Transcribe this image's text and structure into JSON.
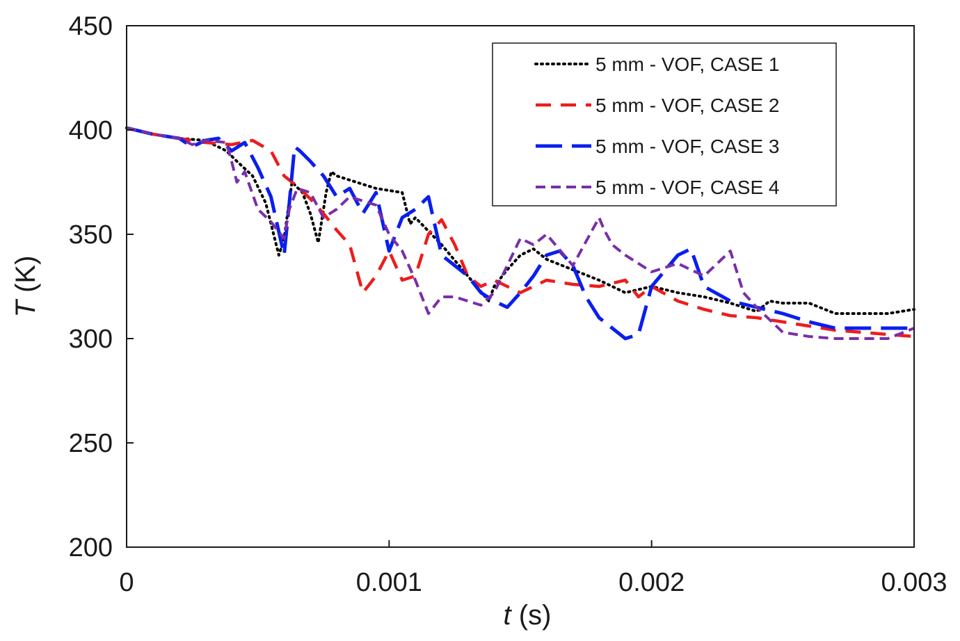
{
  "chart_data": {
    "type": "line",
    "title": "",
    "xlabel": {
      "symbol": "t",
      "unit": " (s)"
    },
    "ylabel": {
      "symbol": "T",
      "unit": " (K)"
    },
    "xlim": [
      0,
      0.003
    ],
    "ylim": [
      200,
      450
    ],
    "xticks": [
      0,
      0.001,
      0.002,
      0.003
    ],
    "xtick_labels": [
      "0",
      "0.001",
      "0.002",
      "0.003"
    ],
    "yticks": [
      200,
      250,
      300,
      350,
      400,
      450
    ],
    "ytick_labels": [
      "200",
      "250",
      "300",
      "350",
      "400",
      "450"
    ],
    "grid": false,
    "legend_position": "top-right",
    "series": [
      {
        "name": "5 mm - VOF, CASE 1",
        "color": "#000000",
        "style": "dotted",
        "x": [
          0,
          0.0001,
          0.0002,
          0.0003,
          0.00038,
          0.00042,
          0.00048,
          0.00053,
          0.00058,
          0.0006,
          0.00063,
          0.00067,
          0.0007,
          0.00073,
          0.00076,
          0.00078,
          0.0008,
          0.00085,
          0.0009,
          0.00095,
          0.001,
          0.00105,
          0.00108,
          0.0011,
          0.0012,
          0.0013,
          0.00138,
          0.0014,
          0.00145,
          0.0015,
          0.00155,
          0.0016,
          0.0017,
          0.0018,
          0.0019,
          0.002,
          0.0021,
          0.0022,
          0.0023,
          0.0024,
          0.00245,
          0.0025,
          0.0026,
          0.0027,
          0.0028,
          0.0029,
          0.003
        ],
        "y": [
          401,
          398,
          396,
          395,
          390,
          385,
          378,
          365,
          340,
          348,
          375,
          370,
          360,
          346,
          370,
          380,
          378,
          376,
          374,
          372,
          371,
          370,
          355,
          358,
          345,
          330,
          318,
          325,
          333,
          340,
          343,
          338,
          333,
          328,
          322,
          325,
          322,
          320,
          317,
          313,
          318,
          317,
          317,
          312,
          312,
          312,
          314
        ]
      },
      {
        "name": "5 mm - VOF, CASE 2",
        "color": "#ee1c1c",
        "style": "dashed",
        "x": [
          0,
          0.0001,
          0.0002,
          0.0003,
          0.0004,
          0.00048,
          0.00055,
          0.0006,
          0.00065,
          0.0007,
          0.00075,
          0.0008,
          0.00085,
          0.0009,
          0.00095,
          0.001,
          0.00105,
          0.0011,
          0.00115,
          0.0012,
          0.00125,
          0.0013,
          0.00135,
          0.0014,
          0.0015,
          0.0016,
          0.0017,
          0.0018,
          0.0019,
          0.00195,
          0.002,
          0.0021,
          0.0022,
          0.0023,
          0.0024,
          0.0025,
          0.0026,
          0.0027,
          0.0028,
          0.0029,
          0.003
        ],
        "y": [
          401,
          398,
          396,
          394,
          393,
          395,
          390,
          378,
          373,
          367,
          360,
          352,
          345,
          322,
          330,
          342,
          328,
          330,
          350,
          357,
          345,
          330,
          325,
          328,
          322,
          328,
          326,
          325,
          328,
          320,
          325,
          318,
          314,
          311,
          310,
          308,
          306,
          304,
          303,
          302,
          301
        ]
      },
      {
        "name": "5 mm - VOF, CASE 3",
        "color": "#0a1fee",
        "style": "longdash",
        "x": [
          0,
          0.0001,
          0.0002,
          0.00025,
          0.0003,
          0.00035,
          0.0004,
          0.00045,
          0.0005,
          0.00055,
          0.0006,
          0.00062,
          0.00064,
          0.00066,
          0.0007,
          0.00075,
          0.0008,
          0.00085,
          0.0009,
          0.00095,
          0.001,
          0.00105,
          0.0011,
          0.00115,
          0.0012,
          0.00125,
          0.0013,
          0.00135,
          0.0014,
          0.00145,
          0.0015,
          0.00155,
          0.0016,
          0.00165,
          0.0017,
          0.00175,
          0.0018,
          0.00185,
          0.0019,
          0.00195,
          0.002,
          0.0021,
          0.00215,
          0.0022,
          0.0023,
          0.0024,
          0.0025,
          0.0026,
          0.0027,
          0.0028,
          0.0029,
          0.003
        ],
        "y": [
          401,
          398,
          396,
          392,
          395,
          396,
          390,
          394,
          382,
          368,
          340,
          365,
          392,
          390,
          385,
          378,
          368,
          372,
          360,
          370,
          342,
          358,
          362,
          368,
          340,
          335,
          330,
          322,
          318,
          315,
          322,
          330,
          340,
          342,
          335,
          320,
          310,
          305,
          300,
          302,
          325,
          340,
          343,
          325,
          318,
          315,
          312,
          308,
          305,
          305,
          305,
          305
        ]
      },
      {
        "name": "5 mm - VOF, CASE 4",
        "color": "#7a2ea8",
        "style": "shortdash",
        "x": [
          0,
          0.0001,
          0.0002,
          0.00025,
          0.0003,
          0.00038,
          0.0004,
          0.00042,
          0.00045,
          0.0005,
          0.00055,
          0.0006,
          0.00062,
          0.00065,
          0.0007,
          0.00075,
          0.0008,
          0.00085,
          0.0009,
          0.00095,
          0.001,
          0.00105,
          0.0011,
          0.00115,
          0.0012,
          0.00125,
          0.0013,
          0.00135,
          0.0014,
          0.0015,
          0.00155,
          0.0016,
          0.0017,
          0.0018,
          0.00182,
          0.00185,
          0.0019,
          0.002,
          0.0021,
          0.0022,
          0.0023,
          0.00235,
          0.0024,
          0.0025,
          0.0026,
          0.0027,
          0.0028,
          0.0029,
          0.003
        ],
        "y": [
          401,
          398,
          396,
          393,
          395,
          394,
          385,
          375,
          380,
          362,
          356,
          348,
          362,
          372,
          370,
          358,
          362,
          368,
          366,
          364,
          350,
          342,
          328,
          312,
          320,
          320,
          318,
          316,
          322,
          348,
          345,
          350,
          335,
          358,
          352,
          345,
          340,
          332,
          336,
          330,
          342,
          322,
          315,
          303,
          301,
          300,
          300,
          300,
          305
        ]
      }
    ]
  }
}
